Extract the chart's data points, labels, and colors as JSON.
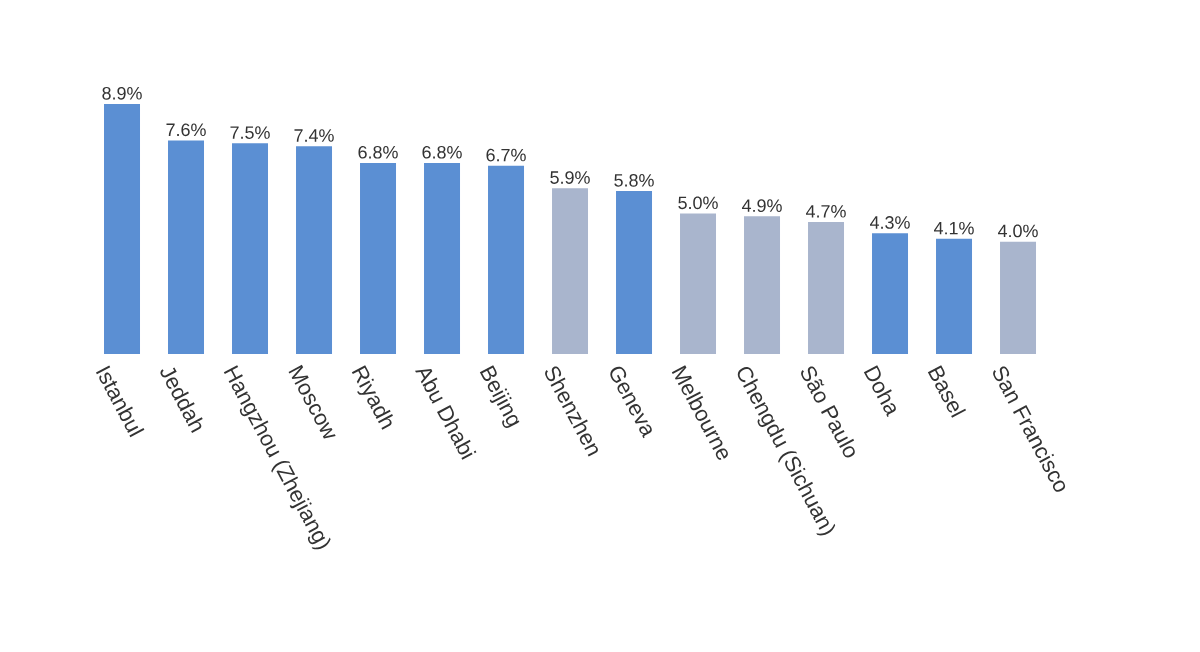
{
  "chart_data": {
    "type": "bar",
    "categories": [
      "Istanbul",
      "Jeddah",
      "Hangzhou (Zhejiang)",
      "Moscow",
      "Riyadh",
      "Abu Dhabi",
      "Beijing",
      "Shenzhen",
      "Geneva",
      "Melbourne",
      "Chengdu (Sichuan)",
      "São Paulo",
      "Doha",
      "Basel",
      "San Francisco"
    ],
    "values": [
      8.9,
      7.6,
      7.5,
      7.4,
      6.8,
      6.8,
      6.7,
      5.9,
      5.8,
      5.0,
      4.9,
      4.7,
      4.3,
      4.1,
      4.0
    ],
    "value_labels": [
      "8.9%",
      "7.6%",
      "7.5%",
      "7.4%",
      "6.8%",
      "6.8%",
      "6.7%",
      "5.9%",
      "5.8%",
      "5.0%",
      "4.9%",
      "4.7%",
      "4.3%",
      "4.1%",
      "4.0%"
    ],
    "colors": [
      "#5b8fd3",
      "#5b8fd3",
      "#5b8fd3",
      "#5b8fd3",
      "#5b8fd3",
      "#5b8fd3",
      "#5b8fd3",
      "#a9b5cd",
      "#5b8fd3",
      "#a9b5cd",
      "#a9b5cd",
      "#a9b5cd",
      "#5b8fd3",
      "#5b8fd3",
      "#a9b5cd"
    ],
    "data_labels": false
  }
}
